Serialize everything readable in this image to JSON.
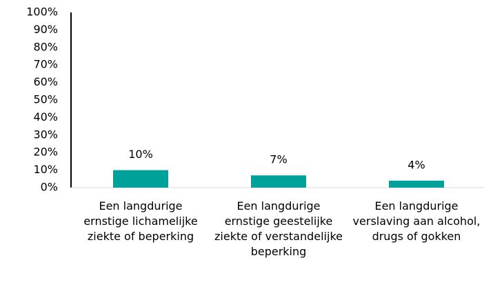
{
  "chart_data": {
    "type": "bar",
    "categories": [
      "Een langdurige ernstige lichamelijke ziekte of beperking",
      "Een langdurige ernstige geestelijke ziekte of verstandelijke beperking",
      "Een langdurige verslaving aan alcohol, drugs of gokken"
    ],
    "values": [
      10,
      7,
      4
    ],
    "value_labels": [
      "10%",
      "7%",
      "4%"
    ],
    "color": "#00a19a",
    "ylim": [
      0,
      100
    ],
    "yticks": [
      {
        "value": 0,
        "label": "0%"
      },
      {
        "value": 10,
        "label": "10%"
      },
      {
        "value": 20,
        "label": "20%"
      },
      {
        "value": 30,
        "label": "30%"
      },
      {
        "value": 40,
        "label": "40%"
      },
      {
        "value": 50,
        "label": "50%"
      },
      {
        "value": 60,
        "label": "60%"
      },
      {
        "value": 70,
        "label": "70%"
      },
      {
        "value": 80,
        "label": "80%"
      },
      {
        "value": 90,
        "label": "90%"
      },
      {
        "value": 100,
        "label": "100%"
      }
    ],
    "grid": false
  }
}
